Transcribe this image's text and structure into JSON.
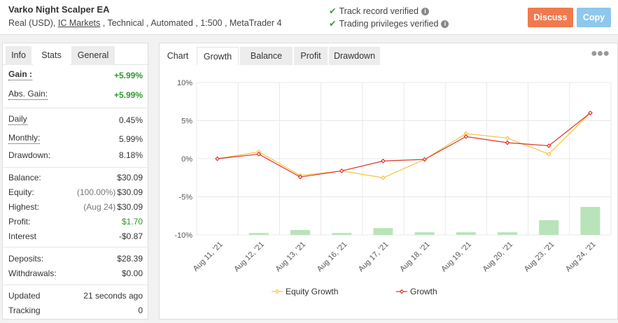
{
  "header": {
    "system_name": "Varko Night Scalper EA",
    "meta_prefix": "Real (USD), ",
    "broker_link": "IC Markets",
    "meta_suffix": " , Technical , Automated , 1:500 , MetaTrader 4",
    "verifications": [
      "Track record verified",
      "Trading privileges verified"
    ],
    "discuss_label": "Discuss",
    "copy_label": "Copy"
  },
  "left_tabs": [
    "Info",
    "Stats",
    "General"
  ],
  "stats": {
    "gain": {
      "label": "Gain :",
      "value": "+5.99%"
    },
    "abs_gain": {
      "label": "Abs. Gain:",
      "value": "+5.99%"
    },
    "daily": {
      "label": "Daily",
      "value": "0.45%"
    },
    "monthly": {
      "label": "Monthly:",
      "value": "5.99%"
    },
    "drawdown": {
      "label": "Drawdown:",
      "value": "8.18%"
    },
    "balance": {
      "label": "Balance:",
      "value": "$30.09"
    },
    "equity": {
      "label": "Equity:",
      "sub": "(100.00%)",
      "value": "$30.09"
    },
    "highest": {
      "label": "Highest:",
      "sub": "(Aug 24)",
      "value": "$30.09"
    },
    "profit": {
      "label": "Profit:",
      "value": "$1.70"
    },
    "interest": {
      "label": "Interest",
      "value": "-$0.87"
    },
    "deposits": {
      "label": "Deposits:",
      "value": "$28.39"
    },
    "withdrawals": {
      "label": "Withdrawals:",
      "value": "$0.00"
    },
    "updated": {
      "label": "Updated",
      "value": "21 seconds ago"
    },
    "tracking": {
      "label": "Tracking",
      "value": "0"
    }
  },
  "chart_tabs": [
    "Chart",
    "Growth",
    "Balance",
    "Profit",
    "Drawdown"
  ],
  "chart_data": {
    "type": "line",
    "categories": [
      "Aug 11, '21",
      "Aug 12, '21",
      "Aug 13, '21",
      "Aug 16, '21",
      "Aug 17, '21",
      "Aug 18, '21",
      "Aug 19, '21",
      "Aug 20, '21",
      "Aug 23, '21",
      "Aug 24, '21"
    ],
    "series": [
      {
        "name": "Equity Growth",
        "color": "#f5c242",
        "values": [
          0.0,
          0.9,
          -2.2,
          -1.6,
          -2.5,
          -0.1,
          3.3,
          2.7,
          0.6,
          6.0
        ]
      },
      {
        "name": "Growth",
        "color": "#d9342b",
        "values": [
          0.0,
          0.6,
          -2.4,
          -1.6,
          -0.3,
          -0.1,
          2.9,
          2.1,
          1.7,
          6.0
        ]
      }
    ],
    "bars": {
      "color": "#b9e3b9",
      "values": [
        0.0,
        0.25,
        0.65,
        0.25,
        0.9,
        0.35,
        0.35,
        0.35,
        1.95,
        3.7
      ]
    },
    "yticks": [
      "10%",
      "5%",
      "0%",
      "-5%",
      "-10%"
    ],
    "ytick_values": [
      10,
      5,
      0,
      -5,
      -10
    ],
    "ylim": [
      -10,
      10
    ],
    "grid": true,
    "legend": "bottom"
  }
}
